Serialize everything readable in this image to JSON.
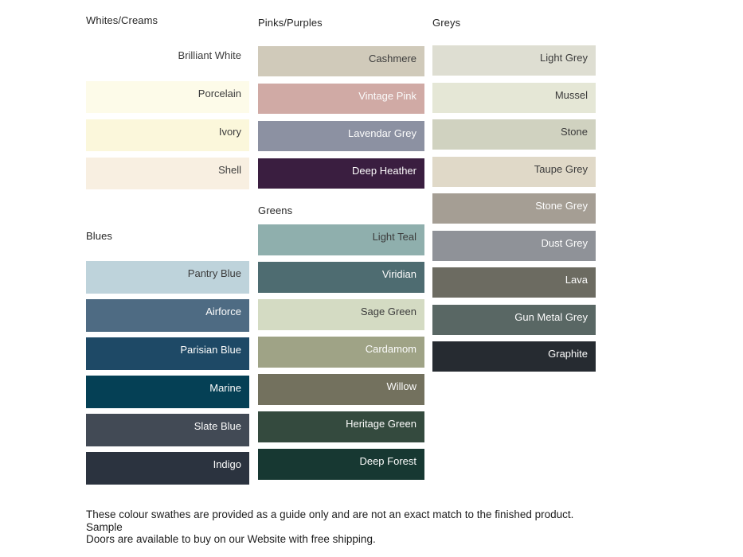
{
  "colors": {
    "background": "#ffffff",
    "label_dark": "#3c3c3c",
    "label_light": "#fbfbfb"
  },
  "groups": [
    {
      "id": "whites",
      "label": "Whites/Creams",
      "swatches": [
        {
          "name": "Brilliant White",
          "color": "#ffffff",
          "text": "dark"
        },
        {
          "name": "Porcelain",
          "color": "#fdfbe9",
          "text": "dark"
        },
        {
          "name": "Ivory",
          "color": "#fbf7db",
          "text": "dark"
        },
        {
          "name": "Shell",
          "color": "#f8efe1",
          "text": "dark"
        }
      ]
    },
    {
      "id": "blues",
      "label": "Blues",
      "swatches": [
        {
          "name": "Pantry Blue",
          "color": "#bed3db",
          "text": "dark"
        },
        {
          "name": "Airforce",
          "color": "#4e6b83",
          "text": "light"
        },
        {
          "name": "Parisian Blue",
          "color": "#1e4966",
          "text": "light"
        },
        {
          "name": "Marine",
          "color": "#054055",
          "text": "light"
        },
        {
          "name": "Slate Blue",
          "color": "#424a55",
          "text": "light"
        },
        {
          "name": "Indigo",
          "color": "#2b333f",
          "text": "light"
        }
      ]
    },
    {
      "id": "pinks",
      "label": "Pinks/Purples",
      "swatches": [
        {
          "name": "Cashmere",
          "color": "#d0caba",
          "text": "dark"
        },
        {
          "name": "Vintage Pink",
          "color": "#d0aaa5",
          "text": "light"
        },
        {
          "name": "Lavendar Grey",
          "color": "#8c91a2",
          "text": "light"
        },
        {
          "name": "Deep Heather",
          "color": "#3a1e40",
          "text": "light"
        }
      ]
    },
    {
      "id": "greens",
      "label": "Greens",
      "swatches": [
        {
          "name": "Light Teal",
          "color": "#8fafad",
          "text": "dark"
        },
        {
          "name": "Viridian",
          "color": "#4e6c71",
          "text": "light"
        },
        {
          "name": "Sage Green",
          "color": "#d4dbc3",
          "text": "dark"
        },
        {
          "name": "Cardamom",
          "color": "#9fa386",
          "text": "light"
        },
        {
          "name": "Willow",
          "color": "#73715e",
          "text": "light"
        },
        {
          "name": "Heritage Green",
          "color": "#344a3e",
          "text": "light"
        },
        {
          "name": "Deep Forest",
          "color": "#173832",
          "text": "light"
        }
      ]
    },
    {
      "id": "greys",
      "label": "Greys",
      "swatches": [
        {
          "name": "Light Grey",
          "color": "#deded2",
          "text": "dark"
        },
        {
          "name": "Mussel",
          "color": "#e5e7d6",
          "text": "dark"
        },
        {
          "name": "Stone",
          "color": "#d0d2c0",
          "text": "dark"
        },
        {
          "name": "Taupe Grey",
          "color": "#e0d9c8",
          "text": "dark"
        },
        {
          "name": "Stone Grey",
          "color": "#a59e94",
          "text": "light"
        },
        {
          "name": "Dust Grey",
          "color": "#8f9298",
          "text": "light"
        },
        {
          "name": "Lava",
          "color": "#6c6b61",
          "text": "light"
        },
        {
          "name": "Gun Metal Grey",
          "color": "#596764",
          "text": "light"
        },
        {
          "name": "Graphite",
          "color": "#262b31",
          "text": "light"
        }
      ]
    }
  ],
  "footer": {
    "lines": [
      "These colour swathes are provided as a guide only and are not an exact match to the finished product.  Sample",
      "Doors are available to buy on our Website with free shipping."
    ]
  }
}
